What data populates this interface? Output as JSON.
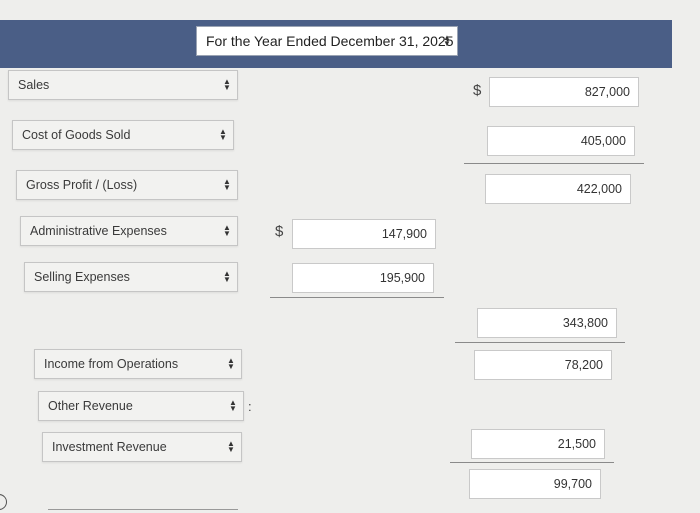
{
  "header": {
    "period_label": "For the Year Ended December 31, 2025"
  },
  "currency_symbol": "$",
  "rows": {
    "sales": {
      "label": "Sales",
      "amount": "827,000"
    },
    "cogs": {
      "label": "Cost of Goods Sold",
      "amount": "405,000"
    },
    "gross_profit": {
      "label": "Gross Profit / (Loss)",
      "amount": "422,000"
    },
    "admin_expenses": {
      "label": "Administrative Expenses",
      "amount": "147,900"
    },
    "selling_expenses": {
      "label": "Selling Expenses",
      "amount": "195,900"
    },
    "total_expenses": {
      "amount": "343,800"
    },
    "income_operations": {
      "label": "Income from Operations",
      "amount": "78,200"
    },
    "other_revenue": {
      "label": "Other Revenue"
    },
    "investment_revenue": {
      "label": "Investment Revenue",
      "amount": "21,500"
    },
    "net_total": {
      "amount": "99,700"
    }
  },
  "colon_text": ":",
  "colors": {
    "header_bar": "#4a5e86",
    "background": "#eeeeec"
  }
}
